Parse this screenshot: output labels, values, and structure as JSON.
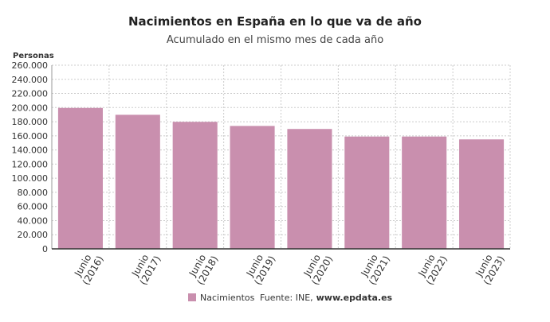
{
  "chart_data": {
    "type": "bar",
    "title": "Nacimientos en España en lo que va de año",
    "subtitle": "Acumulado en el mismo mes de cada año",
    "y_label": "Personas",
    "categories": [
      "Junio (2016)",
      "Junio (2017)",
      "Junio (2018)",
      "Junio (2019)",
      "Junio (2020)",
      "Junio (2021)",
      "Junio (2022)",
      "Junio (2023)"
    ],
    "series": [
      {
        "name": "Nacimientos",
        "color": "#c98fae",
        "values": [
          199500,
          189800,
          179800,
          174000,
          169700,
          159000,
          159000,
          155000
        ]
      }
    ],
    "ylim": [
      0,
      260000
    ],
    "yticks": [
      0,
      {
        "value": 20000,
        "label": "20.000"
      },
      {
        "value": 40000,
        "label": "40.000"
      },
      {
        "value": 60000,
        "label": "60.000"
      },
      {
        "value": 80000,
        "label": "80.000"
      },
      {
        "value": 100000,
        "label": "100.000"
      },
      {
        "value": 120000,
        "label": "120.000"
      },
      {
        "value": 140000,
        "label": "140.000"
      },
      {
        "value": 160000,
        "label": "160.000"
      },
      {
        "value": 180000,
        "label": "180.000"
      },
      {
        "value": 200000,
        "label": "200.000"
      },
      {
        "value": 220000,
        "label": "220.000"
      },
      {
        "value": 240000,
        "label": "240.000"
      },
      {
        "value": 260000,
        "label": "260.000"
      }
    ],
    "grid": true,
    "legend": "bottom",
    "source": "Fuente: INE,",
    "source_link": "www.epdata.es"
  }
}
